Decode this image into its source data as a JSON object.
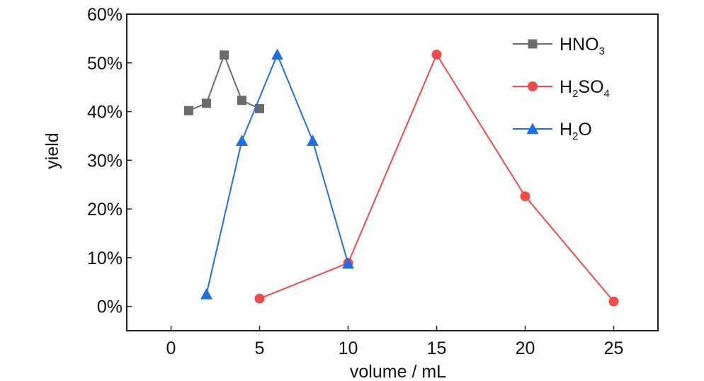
{
  "chart_data": {
    "type": "line",
    "xlabel": "volume / mL",
    "ylabel": "yield",
    "xlim": [
      -2.5,
      27.5
    ],
    "ylim": [
      -5,
      60
    ],
    "xticks": [
      0,
      5,
      10,
      15,
      20,
      25
    ],
    "xtick_labels": [
      "0",
      "5",
      "10",
      "15",
      "20",
      "25"
    ],
    "yticks": [
      0,
      10,
      20,
      30,
      40,
      50,
      60
    ],
    "ytick_labels": [
      "0%",
      "10%",
      "20%",
      "30%",
      "40%",
      "50%",
      "60%"
    ],
    "grid": false,
    "legend_position": "top-right",
    "series": [
      {
        "name": "HNO3",
        "legend_parts": [
          {
            "t": "HNO",
            "sub": false
          },
          {
            "t": "3",
            "sub": true
          }
        ],
        "color": "#6b6b6b",
        "marker": "square",
        "x": [
          1,
          2,
          3,
          4,
          5
        ],
        "y": [
          40.2,
          41.7,
          51.6,
          42.3,
          40.6
        ]
      },
      {
        "name": "H2SO4",
        "legend_parts": [
          {
            "t": "H",
            "sub": false
          },
          {
            "t": "2",
            "sub": true
          },
          {
            "t": "SO",
            "sub": false
          },
          {
            "t": "4",
            "sub": true
          }
        ],
        "color": "#ee4b4b",
        "marker": "circle",
        "x": [
          5,
          10,
          15,
          20,
          25
        ],
        "y": [
          1.6,
          8.9,
          51.7,
          22.6,
          1.0
        ]
      },
      {
        "name": "H2O",
        "legend_parts": [
          {
            "t": "H",
            "sub": false
          },
          {
            "t": "2",
            "sub": true
          },
          {
            "t": "O",
            "sub": false
          }
        ],
        "color": "#1f6fe0",
        "marker": "triangle",
        "x": [
          2,
          4,
          6,
          8,
          10
        ],
        "y": [
          2.5,
          34.0,
          51.7,
          34.0,
          8.8
        ]
      }
    ]
  }
}
